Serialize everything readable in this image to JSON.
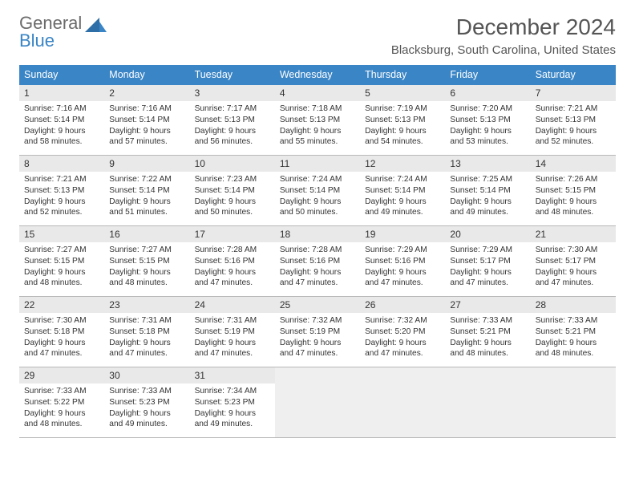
{
  "logo": {
    "text1": "General",
    "text2": "Blue"
  },
  "header": {
    "month_title": "December 2024",
    "location": "Blacksburg, South Carolina, United States"
  },
  "style": {
    "header_bg": "#3a85c6",
    "header_fg": "#ffffff",
    "daynum_bg": "#e9e9e9",
    "empty_bg": "#efefef",
    "row_border_top": "#3a85c6",
    "row_border_bottom": "#b8b8b8",
    "body_text": "#333333",
    "title_fontsize": 28,
    "header_fontsize": 12.5,
    "cell_fontsize": 10.2
  },
  "calendar": {
    "type": "table",
    "columns": [
      "Sunday",
      "Monday",
      "Tuesday",
      "Wednesday",
      "Thursday",
      "Friday",
      "Saturday"
    ],
    "weeks": [
      [
        {
          "day": 1,
          "sunrise": "7:16 AM",
          "sunset": "5:14 PM",
          "daylight": "9 hours and 58 minutes."
        },
        {
          "day": 2,
          "sunrise": "7:16 AM",
          "sunset": "5:14 PM",
          "daylight": "9 hours and 57 minutes."
        },
        {
          "day": 3,
          "sunrise": "7:17 AM",
          "sunset": "5:13 PM",
          "daylight": "9 hours and 56 minutes."
        },
        {
          "day": 4,
          "sunrise": "7:18 AM",
          "sunset": "5:13 PM",
          "daylight": "9 hours and 55 minutes."
        },
        {
          "day": 5,
          "sunrise": "7:19 AM",
          "sunset": "5:13 PM",
          "daylight": "9 hours and 54 minutes."
        },
        {
          "day": 6,
          "sunrise": "7:20 AM",
          "sunset": "5:13 PM",
          "daylight": "9 hours and 53 minutes."
        },
        {
          "day": 7,
          "sunrise": "7:21 AM",
          "sunset": "5:13 PM",
          "daylight": "9 hours and 52 minutes."
        }
      ],
      [
        {
          "day": 8,
          "sunrise": "7:21 AM",
          "sunset": "5:13 PM",
          "daylight": "9 hours and 52 minutes."
        },
        {
          "day": 9,
          "sunrise": "7:22 AM",
          "sunset": "5:14 PM",
          "daylight": "9 hours and 51 minutes."
        },
        {
          "day": 10,
          "sunrise": "7:23 AM",
          "sunset": "5:14 PM",
          "daylight": "9 hours and 50 minutes."
        },
        {
          "day": 11,
          "sunrise": "7:24 AM",
          "sunset": "5:14 PM",
          "daylight": "9 hours and 50 minutes."
        },
        {
          "day": 12,
          "sunrise": "7:24 AM",
          "sunset": "5:14 PM",
          "daylight": "9 hours and 49 minutes."
        },
        {
          "day": 13,
          "sunrise": "7:25 AM",
          "sunset": "5:14 PM",
          "daylight": "9 hours and 49 minutes."
        },
        {
          "day": 14,
          "sunrise": "7:26 AM",
          "sunset": "5:15 PM",
          "daylight": "9 hours and 48 minutes."
        }
      ],
      [
        {
          "day": 15,
          "sunrise": "7:27 AM",
          "sunset": "5:15 PM",
          "daylight": "9 hours and 48 minutes."
        },
        {
          "day": 16,
          "sunrise": "7:27 AM",
          "sunset": "5:15 PM",
          "daylight": "9 hours and 48 minutes."
        },
        {
          "day": 17,
          "sunrise": "7:28 AM",
          "sunset": "5:16 PM",
          "daylight": "9 hours and 47 minutes."
        },
        {
          "day": 18,
          "sunrise": "7:28 AM",
          "sunset": "5:16 PM",
          "daylight": "9 hours and 47 minutes."
        },
        {
          "day": 19,
          "sunrise": "7:29 AM",
          "sunset": "5:16 PM",
          "daylight": "9 hours and 47 minutes."
        },
        {
          "day": 20,
          "sunrise": "7:29 AM",
          "sunset": "5:17 PM",
          "daylight": "9 hours and 47 minutes."
        },
        {
          "day": 21,
          "sunrise": "7:30 AM",
          "sunset": "5:17 PM",
          "daylight": "9 hours and 47 minutes."
        }
      ],
      [
        {
          "day": 22,
          "sunrise": "7:30 AM",
          "sunset": "5:18 PM",
          "daylight": "9 hours and 47 minutes."
        },
        {
          "day": 23,
          "sunrise": "7:31 AM",
          "sunset": "5:18 PM",
          "daylight": "9 hours and 47 minutes."
        },
        {
          "day": 24,
          "sunrise": "7:31 AM",
          "sunset": "5:19 PM",
          "daylight": "9 hours and 47 minutes."
        },
        {
          "day": 25,
          "sunrise": "7:32 AM",
          "sunset": "5:19 PM",
          "daylight": "9 hours and 47 minutes."
        },
        {
          "day": 26,
          "sunrise": "7:32 AM",
          "sunset": "5:20 PM",
          "daylight": "9 hours and 47 minutes."
        },
        {
          "day": 27,
          "sunrise": "7:33 AM",
          "sunset": "5:21 PM",
          "daylight": "9 hours and 48 minutes."
        },
        {
          "day": 28,
          "sunrise": "7:33 AM",
          "sunset": "5:21 PM",
          "daylight": "9 hours and 48 minutes."
        }
      ],
      [
        {
          "day": 29,
          "sunrise": "7:33 AM",
          "sunset": "5:22 PM",
          "daylight": "9 hours and 48 minutes."
        },
        {
          "day": 30,
          "sunrise": "7:33 AM",
          "sunset": "5:23 PM",
          "daylight": "9 hours and 49 minutes."
        },
        {
          "day": 31,
          "sunrise": "7:34 AM",
          "sunset": "5:23 PM",
          "daylight": "9 hours and 49 minutes."
        },
        null,
        null,
        null,
        null
      ]
    ]
  }
}
